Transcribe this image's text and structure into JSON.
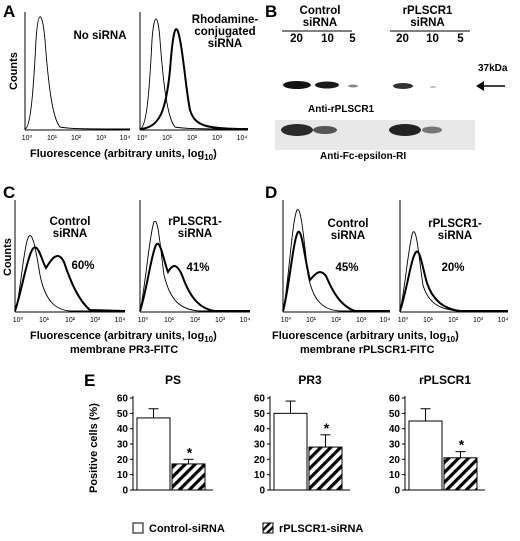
{
  "panels": {
    "A": {
      "label": "A",
      "ylabel": "Counts",
      "left_text": "No siRNA",
      "right_text": "Rhodamine-conjugated siRNA",
      "xlabel": "Fluorescence (arbitrary units, log",
      "xlabel_sub": "10",
      "xlabel_end": ")",
      "ticks": [
        "10⁰",
        "10¹",
        "10²",
        "10³",
        "10⁴"
      ]
    },
    "B": {
      "label": "B",
      "groups": [
        "Control siRNA",
        "rPLSCR1 siRNA"
      ],
      "lanes": [
        "20",
        "10",
        "5",
        "20",
        "10",
        "5"
      ],
      "marker": "37kDa",
      "blot1": "Anti-rPLSCR1",
      "blot2": "Anti-Fc-epsilon-RI"
    },
    "C": {
      "label": "C",
      "ylabel": "Counts",
      "left_text": "Control siRNA",
      "left_pct": "60%",
      "right_text": "rPLSCR1-siRNA",
      "right_pct": "41%",
      "xlabel": "Fluorescence (arbitrary units, log",
      "xlabel_sub": "10",
      "xlabel_end": ")",
      "xlabel2": "membrane PR3-FITC"
    },
    "D": {
      "label": "D",
      "left_text": "Control siRNA",
      "left_pct": "45%",
      "right_text": "rPLSCR1-siRNA",
      "right_pct": "20%",
      "xlabel": "Fluorescence (arbitrary units, log",
      "xlabel_sub": "10",
      "xlabel_end": ")",
      "xlabel2": "membrane rPLSCR1-FITC"
    },
    "E": {
      "label": "E",
      "ylabel": "Positive cells (%)",
      "legend": [
        "Control-siRNA",
        "rPLSCR1-siRNA"
      ]
    }
  },
  "chart_data": [
    {
      "type": "bar",
      "title": "PS",
      "categories": [
        "Control-siRNA",
        "rPLSCR1-siRNA"
      ],
      "values": [
        47,
        17
      ],
      "errors": [
        6,
        3
      ],
      "significance": [
        "",
        "*"
      ],
      "ylim": [
        0,
        60
      ],
      "yticks": [
        0,
        10,
        20,
        30,
        40,
        50,
        60
      ],
      "ylabel": "Positive cells (%)"
    },
    {
      "type": "bar",
      "title": "PR3",
      "categories": [
        "Control-siRNA",
        "rPLSCR1-siRNA"
      ],
      "values": [
        50,
        28
      ],
      "errors": [
        8,
        8
      ],
      "significance": [
        "",
        "*"
      ],
      "ylim": [
        0,
        60
      ],
      "yticks": [
        0,
        10,
        20,
        30,
        40,
        50,
        60
      ]
    },
    {
      "type": "bar",
      "title": "rPLSCR1",
      "categories": [
        "Control-siRNA",
        "rPLSCR1-siRNA"
      ],
      "values": [
        45,
        21
      ],
      "errors": [
        8,
        4
      ],
      "significance": [
        "",
        "*"
      ],
      "ylim": [
        0,
        60
      ],
      "yticks": [
        0,
        10,
        20,
        30,
        40,
        50,
        60
      ]
    }
  ]
}
